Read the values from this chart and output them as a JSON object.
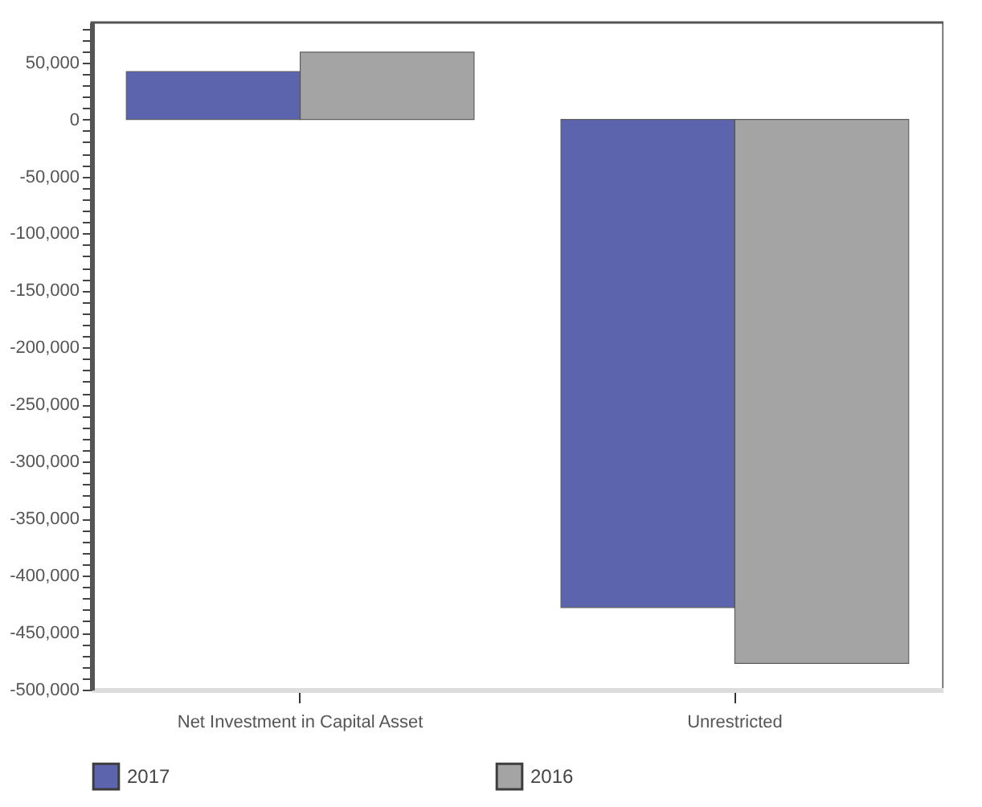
{
  "chart_data": {
    "type": "bar",
    "categories": [
      "Net Investment in Capital Asset",
      "Unrestricted"
    ],
    "series": [
      {
        "name": "2017",
        "color": "#535ca8",
        "values": [
          42000,
          -428000
        ]
      },
      {
        "name": "2016",
        "color": "#a0a0a0",
        "values": [
          59000,
          -477000
        ]
      }
    ],
    "ylim": [
      -500000,
      85000
    ],
    "yticks": [
      {
        "value": -500000,
        "label": "-500,000"
      },
      {
        "value": -490000,
        "label": null
      },
      {
        "value": -480000,
        "label": null
      },
      {
        "value": -470000,
        "label": null
      },
      {
        "value": -460000,
        "label": null
      },
      {
        "value": -450000,
        "label": "-450,000"
      },
      {
        "value": -440000,
        "label": null
      },
      {
        "value": -430000,
        "label": null
      },
      {
        "value": -420000,
        "label": null
      },
      {
        "value": -410000,
        "label": null
      },
      {
        "value": -400000,
        "label": "-400,000"
      },
      {
        "value": -390000,
        "label": null
      },
      {
        "value": -380000,
        "label": null
      },
      {
        "value": -370000,
        "label": null
      },
      {
        "value": -360000,
        "label": null
      },
      {
        "value": -350000,
        "label": "-350,000"
      },
      {
        "value": -340000,
        "label": null
      },
      {
        "value": -330000,
        "label": null
      },
      {
        "value": -320000,
        "label": null
      },
      {
        "value": -310000,
        "label": null
      },
      {
        "value": -300000,
        "label": "-300,000"
      },
      {
        "value": -290000,
        "label": null
      },
      {
        "value": -280000,
        "label": null
      },
      {
        "value": -270000,
        "label": null
      },
      {
        "value": -260000,
        "label": null
      },
      {
        "value": -250000,
        "label": "-250,000"
      },
      {
        "value": -240000,
        "label": null
      },
      {
        "value": -230000,
        "label": null
      },
      {
        "value": -220000,
        "label": null
      },
      {
        "value": -210000,
        "label": null
      },
      {
        "value": -200000,
        "label": "-200,000"
      },
      {
        "value": -190000,
        "label": null
      },
      {
        "value": -180000,
        "label": null
      },
      {
        "value": -170000,
        "label": null
      },
      {
        "value": -160000,
        "label": null
      },
      {
        "value": -150000,
        "label": "-150,000"
      },
      {
        "value": -140000,
        "label": null
      },
      {
        "value": -130000,
        "label": null
      },
      {
        "value": -120000,
        "label": null
      },
      {
        "value": -110000,
        "label": null
      },
      {
        "value": -100000,
        "label": "-100,000"
      },
      {
        "value": -90000,
        "label": null
      },
      {
        "value": -80000,
        "label": null
      },
      {
        "value": -70000,
        "label": null
      },
      {
        "value": -60000,
        "label": null
      },
      {
        "value": -50000,
        "label": "-50,000"
      },
      {
        "value": -40000,
        "label": null
      },
      {
        "value": -30000,
        "label": null
      },
      {
        "value": -20000,
        "label": null
      },
      {
        "value": -10000,
        "label": null
      },
      0,
      {
        "value": 10000,
        "label": null
      },
      {
        "value": 20000,
        "label": null
      },
      {
        "value": 30000,
        "label": null
      },
      {
        "value": 40000,
        "label": null
      },
      {
        "value": 50000,
        "label": "50,000"
      },
      {
        "value": 60000,
        "label": null
      },
      {
        "value": 70000,
        "label": null
      },
      {
        "value": 80000,
        "label": null
      }
    ],
    "grid": false,
    "legend": "bottom"
  }
}
